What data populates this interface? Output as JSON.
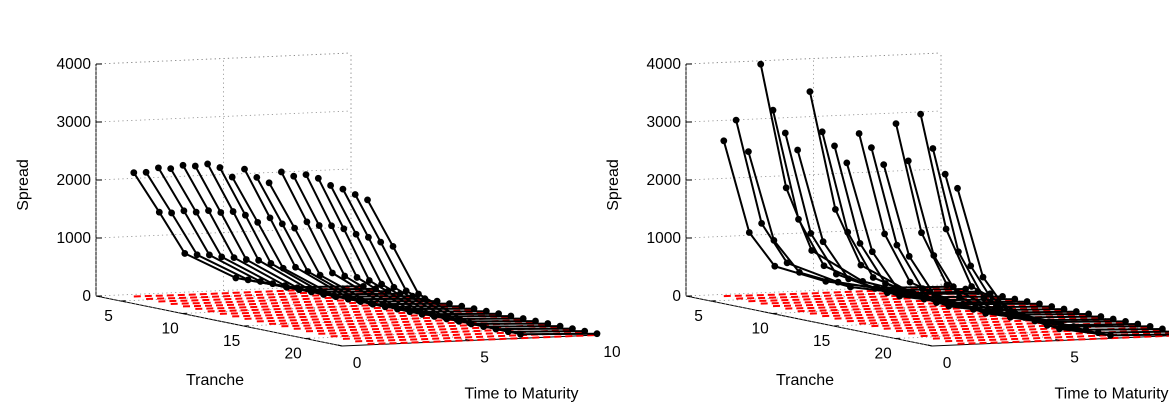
{
  "chart_data": [
    {
      "type": "line",
      "view": "3d",
      "xlabel": "Time to Maturity",
      "ylabel": "Tranche",
      "zlabel": "Spread",
      "x_ticks": [
        0,
        5,
        10
      ],
      "y_ticks": [
        5,
        10,
        15,
        20
      ],
      "z_ticks": [
        0,
        1000,
        2000,
        3000,
        4000
      ],
      "xlim": [
        0,
        10
      ],
      "ylim": [
        3,
        23
      ],
      "zlim": [
        0,
        4000
      ],
      "grid": true,
      "times": [
        1,
        2,
        3,
        5,
        7,
        10
      ],
      "tranches": [
        4,
        5,
        6,
        7,
        8,
        9,
        10,
        11,
        12,
        13,
        14,
        15,
        16,
        17,
        18,
        19,
        20,
        21,
        22,
        23
      ],
      "series": [
        {
          "color": "#000000",
          "marker": "dot",
          "values": [
            [
              2150,
              1450,
              720,
              260,
              60,
              20
            ],
            [
              2200,
              1480,
              740,
              270,
              62,
              21
            ],
            [
              2320,
              1560,
              780,
              285,
              65,
              22
            ],
            [
              2350,
              1580,
              790,
              290,
              66,
              22
            ],
            [
              2450,
              1650,
              820,
              300,
              70,
              23
            ],
            [
              2480,
              1660,
              830,
              305,
              70,
              23
            ],
            [
              2560,
              1720,
              860,
              315,
              72,
              24
            ],
            [
              2540,
              1700,
              850,
              310,
              71,
              24
            ],
            [
              2420,
              1620,
              810,
              300,
              68,
              23
            ],
            [
              2600,
              1740,
              870,
              320,
              73,
              24
            ],
            [
              2500,
              1680,
              840,
              305,
              70,
              23
            ],
            [
              2450,
              1650,
              820,
              300,
              69,
              23
            ],
            [
              2680,
              1800,
              900,
              330,
              75,
              25
            ],
            [
              2650,
              1780,
              890,
              325,
              74,
              25
            ],
            [
              2720,
              1820,
              910,
              335,
              76,
              25
            ],
            [
              2700,
              1810,
              900,
              330,
              75,
              25
            ],
            [
              2620,
              1760,
              880,
              320,
              73,
              24
            ],
            [
              2600,
              1750,
              870,
              318,
              72,
              24
            ],
            [
              2550,
              1710,
              850,
              312,
              71,
              24
            ],
            [
              2500,
              1680,
              840,
              305,
              70,
              23
            ]
          ]
        },
        {
          "color": "#ff0000",
          "style": "dashed",
          "values": [
            [
              15,
              10,
              6,
              3,
              1,
              0
            ],
            [
              15,
              10,
              6,
              3,
              1,
              0
            ],
            [
              16,
              11,
              6,
              3,
              1,
              0
            ],
            [
              16,
              11,
              6,
              3,
              1,
              0
            ],
            [
              17,
              11,
              7,
              3,
              1,
              0
            ],
            [
              17,
              11,
              7,
              3,
              1,
              0
            ],
            [
              18,
              12,
              7,
              3,
              1,
              0
            ],
            [
              18,
              12,
              7,
              3,
              1,
              0
            ],
            [
              17,
              11,
              7,
              3,
              1,
              0
            ],
            [
              18,
              12,
              7,
              3,
              1,
              0
            ],
            [
              17,
              11,
              7,
              3,
              1,
              0
            ],
            [
              17,
              11,
              7,
              3,
              1,
              0
            ],
            [
              19,
              12,
              7,
              3,
              1,
              0
            ],
            [
              19,
              12,
              7,
              3,
              1,
              0
            ],
            [
              19,
              12,
              7,
              3,
              1,
              0
            ],
            [
              19,
              12,
              7,
              3,
              1,
              0
            ],
            [
              18,
              12,
              7,
              3,
              1,
              0
            ],
            [
              18,
              12,
              7,
              3,
              1,
              0
            ],
            [
              18,
              12,
              7,
              3,
              1,
              0
            ],
            [
              17,
              11,
              7,
              3,
              1,
              0
            ]
          ]
        }
      ]
    },
    {
      "type": "line",
      "view": "3d",
      "xlabel": "Time to Maturity",
      "ylabel": "Tranche",
      "zlabel": "Spread",
      "x_ticks": [
        0,
        5,
        10
      ],
      "y_ticks": [
        5,
        10,
        15,
        20
      ],
      "z_ticks": [
        0,
        1000,
        2000,
        3000,
        4000
      ],
      "xlim": [
        0,
        10
      ],
      "ylim": [
        3,
        23
      ],
      "zlim": [
        0,
        4000
      ],
      "grid": true,
      "times": [
        1,
        2,
        3,
        5,
        7,
        10
      ],
      "tranches": [
        4,
        5,
        6,
        7,
        8,
        9,
        10,
        11,
        12,
        13,
        14,
        15,
        16,
        17,
        18,
        19,
        20,
        21,
        22,
        23
      ],
      "series": [
        {
          "color": "#000000",
          "marker": "dot",
          "values": [
            [
              2700,
              1100,
              500,
              200,
              50,
              15
            ],
            [
              3100,
              1300,
              600,
              230,
              55,
              17
            ],
            [
              2600,
              1050,
              480,
              190,
              48,
              15
            ],
            [
              4150,
              2000,
              900,
              330,
              80,
              22
            ],
            [
              3400,
              1500,
              680,
              250,
              60,
              18
            ],
            [
              3050,
              1300,
              580,
              220,
              54,
              16
            ],
            [
              2800,
              1200,
              540,
              205,
              52,
              16
            ],
            [
              3850,
              1800,
              820,
              300,
              72,
              20
            ],
            [
              3200,
              1450,
              650,
              240,
              58,
              17
            ],
            [
              3000,
              1300,
              590,
              222,
              54,
              16
            ],
            [
              2750,
              1200,
              540,
              205,
              52,
              16
            ],
            [
              3300,
              1550,
              700,
              260,
              62,
              18
            ],
            [
              3100,
              1400,
              630,
              235,
              57,
              17
            ],
            [
              2850,
              1250,
              560,
              210,
              53,
              16
            ],
            [
              3600,
              1700,
              780,
              290,
              68,
              19
            ],
            [
              3000,
              1350,
              610,
              228,
              55,
              17
            ],
            [
              3850,
              1850,
              840,
              310,
              74,
              20
            ],
            [
              3300,
              1500,
              680,
              250,
              60,
              18
            ],
            [
              2900,
              1300,
              580,
              218,
              54,
              16
            ],
            [
              2700,
              1150,
              520,
              200,
              50,
              15
            ]
          ]
        },
        {
          "color": "#ff0000",
          "style": "dashed",
          "values": [
            [
              22,
              14,
              8,
              4,
              1,
              0
            ],
            [
              22,
              14,
              8,
              4,
              1,
              0
            ],
            [
              21,
              13,
              8,
              4,
              1,
              0
            ],
            [
              23,
              15,
              9,
              4,
              1,
              0
            ],
            [
              22,
              14,
              8,
              4,
              1,
              0
            ],
            [
              22,
              14,
              8,
              4,
              1,
              0
            ],
            [
              21,
              13,
              8,
              4,
              1,
              0
            ],
            [
              23,
              15,
              9,
              4,
              1,
              0
            ],
            [
              22,
              14,
              8,
              4,
              1,
              0
            ],
            [
              22,
              14,
              8,
              4,
              1,
              0
            ],
            [
              21,
              13,
              8,
              4,
              1,
              0
            ],
            [
              22,
              14,
              8,
              4,
              1,
              0
            ],
            [
              22,
              14,
              8,
              4,
              1,
              0
            ],
            [
              21,
              13,
              8,
              4,
              1,
              0
            ],
            [
              23,
              15,
              9,
              4,
              1,
              0
            ],
            [
              22,
              14,
              8,
              4,
              1,
              0
            ],
            [
              23,
              15,
              9,
              4,
              1,
              0
            ],
            [
              22,
              14,
              8,
              4,
              1,
              0
            ],
            [
              21,
              13,
              8,
              4,
              1,
              0
            ],
            [
              21,
              13,
              8,
              4,
              1,
              0
            ]
          ]
        }
      ]
    }
  ]
}
